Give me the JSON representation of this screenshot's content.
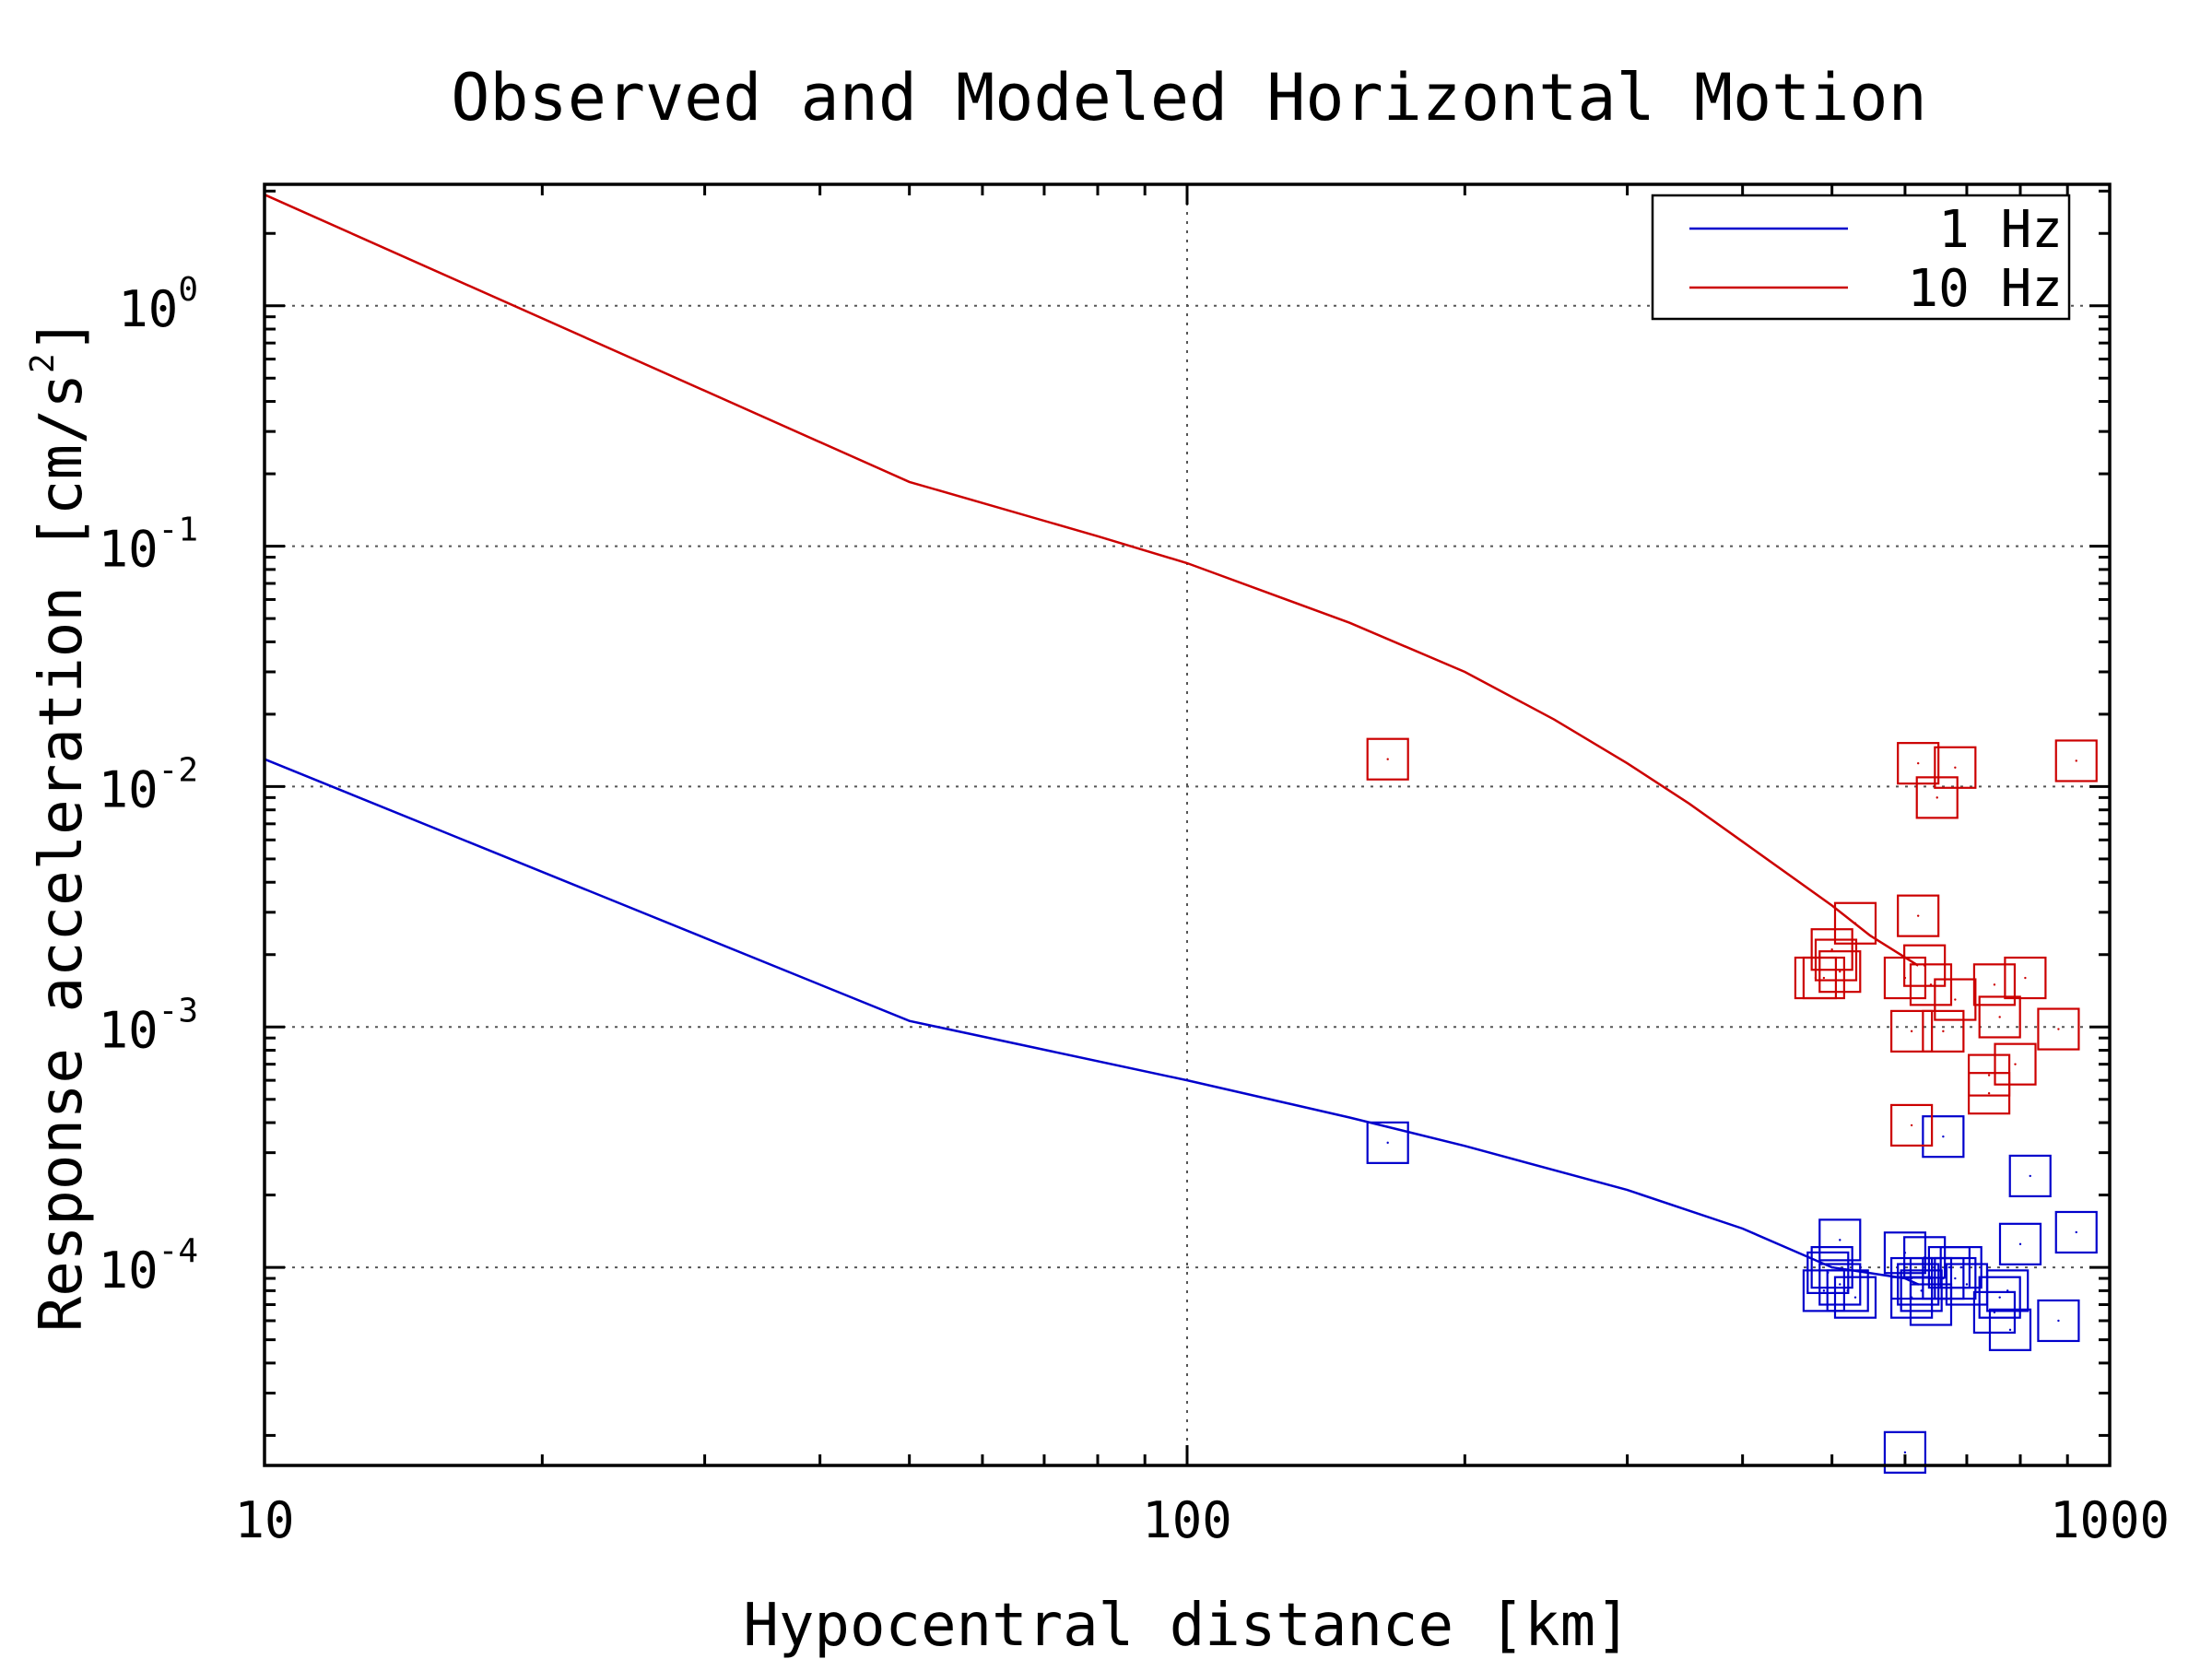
{
  "chart_data": {
    "type": "scatter",
    "title": "Observed and Modeled Horizontal Motion",
    "xlabel": "Hypocentral distance [km]",
    "ylabel_parts": [
      "Response acceleration [cm/s",
      "2",
      "]"
    ],
    "xscale": "log",
    "yscale": "log",
    "xlim": [
      10,
      1000
    ],
    "ylim": [
      1.5e-05,
      3.2
    ],
    "x_ticks": [
      {
        "value": 10,
        "label": "10"
      },
      {
        "value": 100,
        "label": "100"
      },
      {
        "value": 1000,
        "label": "1000"
      }
    ],
    "y_ticks": [
      {
        "value": 1,
        "base": "10",
        "exp": "0"
      },
      {
        "value": 0.1,
        "base": "10",
        "exp": "-1"
      },
      {
        "value": 0.01,
        "base": "10",
        "exp": "-2"
      },
      {
        "value": 0.001,
        "base": "10",
        "exp": "-3"
      },
      {
        "value": 0.0001,
        "base": "10",
        "exp": "-4"
      }
    ],
    "grid": true,
    "legend_position": "top-right",
    "series": [
      {
        "name": "1 Hz",
        "color": "#0000cc",
        "line": [
          [
            10,
            0.013
          ],
          [
            50,
            0.00106
          ],
          [
            100,
            0.0006
          ],
          [
            150,
            0.00042
          ],
          [
            200,
            0.00032
          ],
          [
            300,
            0.00021
          ],
          [
            400,
            0.000145
          ],
          [
            500,
            0.0001
          ],
          [
            600,
            9e-05
          ],
          [
            620,
            8.5e-05
          ]
        ],
        "points": [
          [
            165,
            0.00033
          ],
          [
            510,
            0.00013
          ],
          [
            500,
            0.0001
          ],
          [
            490,
            8e-05
          ],
          [
            495,
            9.5e-05
          ],
          [
            510,
            8.5e-05
          ],
          [
            520,
            8e-05
          ],
          [
            530,
            7.5e-05
          ],
          [
            600,
            0.000115
          ],
          [
            610,
            9e-05
          ],
          [
            620,
            8.5e-05
          ],
          [
            625,
            8e-05
          ],
          [
            630,
            0.00011
          ],
          [
            640,
            9e-05
          ],
          [
            660,
            9e-05
          ],
          [
            670,
            0.0001
          ],
          [
            680,
            9e-05
          ],
          [
            690,
            0.0001
          ],
          [
            700,
            8.5e-05
          ],
          [
            750,
            6.5e-05
          ],
          [
            760,
            7.5e-05
          ],
          [
            775,
            8e-05
          ],
          [
            780,
            5.5e-05
          ],
          [
            800,
            0.000125
          ],
          [
            820,
            0.00024
          ],
          [
            880,
            6e-05
          ],
          [
            920,
            0.00014
          ],
          [
            660,
            0.00035
          ],
          [
            600,
            1.7e-05
          ],
          [
            610,
            7.5e-05
          ],
          [
            640,
            7e-05
          ]
        ]
      },
      {
        "name": "10 Hz",
        "color": "#cc0000",
        "line": [
          [
            10,
            2.9
          ],
          [
            50,
            0.185
          ],
          [
            80,
            0.11
          ],
          [
            100,
            0.085
          ],
          [
            150,
            0.048
          ],
          [
            200,
            0.03
          ],
          [
            250,
            0.019
          ],
          [
            300,
            0.0125
          ],
          [
            350,
            0.0085
          ],
          [
            400,
            0.0059
          ],
          [
            500,
            0.0032
          ],
          [
            550,
            0.0024
          ],
          [
            620,
            0.0018
          ]
        ],
        "points": [
          [
            165,
            0.013
          ],
          [
            620,
            0.0125
          ],
          [
            680,
            0.012
          ],
          [
            920,
            0.0128
          ],
          [
            650,
            0.009
          ],
          [
            530,
            0.0027
          ],
          [
            620,
            0.0029
          ],
          [
            505,
            0.0019
          ],
          [
            500,
            0.0021
          ],
          [
            510,
            0.0017
          ],
          [
            480,
            0.0016
          ],
          [
            490,
            0.0016
          ],
          [
            600,
            0.0016
          ],
          [
            630,
            0.0018
          ],
          [
            640,
            0.0015
          ],
          [
            680,
            0.0013
          ],
          [
            750,
            0.0015
          ],
          [
            810,
            0.0016
          ],
          [
            610,
            0.00096
          ],
          [
            660,
            0.00096
          ],
          [
            760,
            0.0011
          ],
          [
            880,
            0.00098
          ],
          [
            740,
            0.00063
          ],
          [
            740,
            0.00053
          ],
          [
            790,
            0.0007
          ],
          [
            610,
            0.00039
          ]
        ]
      }
    ]
  }
}
